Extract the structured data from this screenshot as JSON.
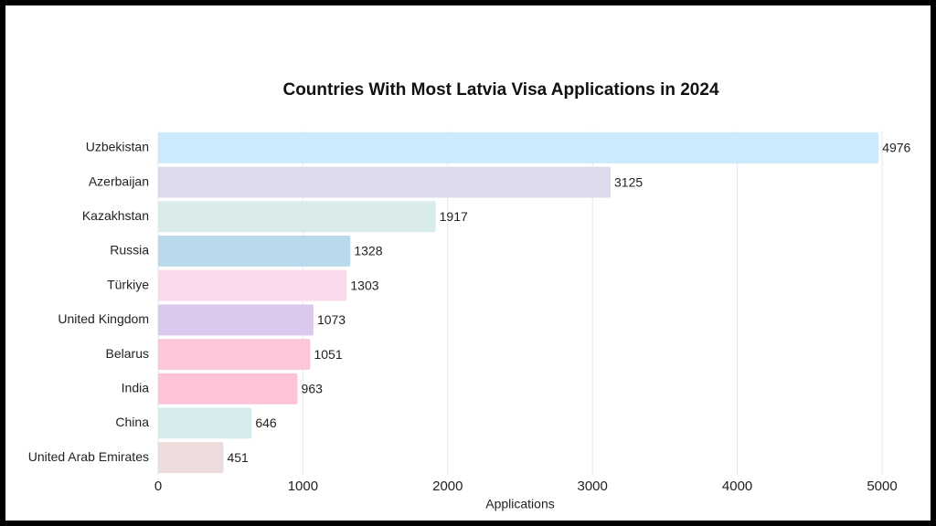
{
  "chart_data": {
    "type": "barh",
    "title": "Countries With Most Latvia Visa Applications in 2024",
    "x_label": "Applications",
    "categories": [
      "Uzbekistan",
      "Azerbaijan",
      "Kazakhstan",
      "Russia",
      "Türkiye",
      "United Kingdom",
      "Belarus",
      "India",
      "China",
      "United Arab Emirates"
    ],
    "values": [
      4976,
      3125,
      1917,
      1328,
      1303,
      1073,
      1051,
      963,
      646,
      451
    ],
    "colors": [
      "#cdeafd",
      "#dcdaeb",
      "#d9ecea",
      "#b9d9ec",
      "#fcdaee",
      "#dcc8ec",
      "#fdc7da",
      "#fdc4d9",
      "#d7ecec",
      "#ecdcdc"
    ],
    "xlim": [
      0,
      5000
    ],
    "xticks": [
      0,
      1000,
      2000,
      3000,
      4000,
      5000
    ],
    "grid": true
  }
}
